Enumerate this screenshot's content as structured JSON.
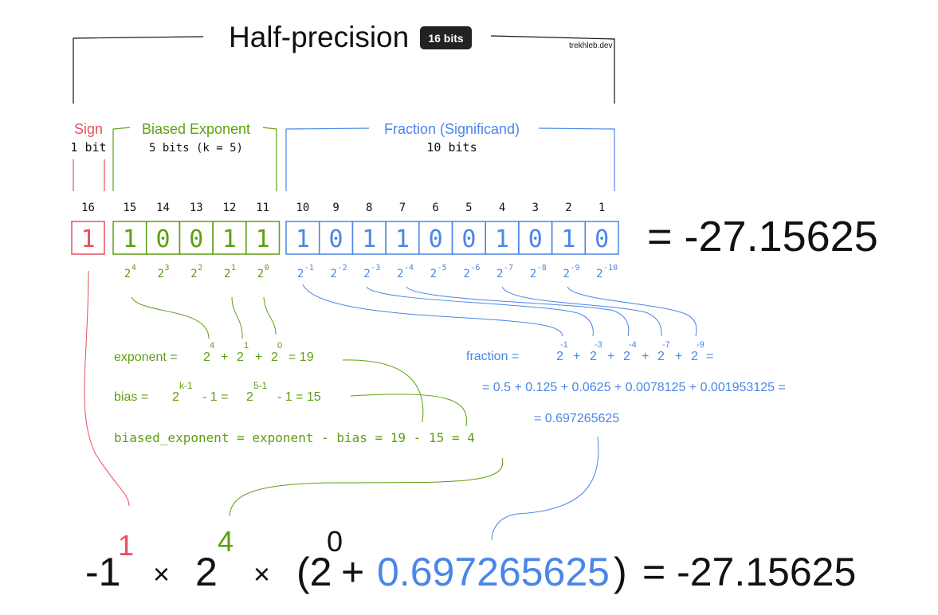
{
  "title": "Half-precision",
  "badge": "16 bits",
  "credit": "trekhleb.dev",
  "colors": {
    "sign": "#e8505b",
    "exponent": "#5e9f12",
    "fraction": "#4a86e8",
    "text": "#111111",
    "badge_bg": "#222222"
  },
  "sign": {
    "label": "Sign",
    "width_label": "1 bit"
  },
  "exponent": {
    "label": "Biased Exponent",
    "width_label": "5 bits (k = 5)"
  },
  "fraction": {
    "label": "Fraction (Significand)",
    "width_label": "10 bits"
  },
  "bit_positions": [
    "16",
    "15",
    "14",
    "13",
    "12",
    "11",
    "10",
    "9",
    "8",
    "7",
    "6",
    "5",
    "4",
    "3",
    "2",
    "1"
  ],
  "bits": [
    "1",
    "1",
    "0",
    "0",
    "1",
    "1",
    "1",
    "0",
    "1",
    "1",
    "0",
    "0",
    "1",
    "0",
    "1",
    "0"
  ],
  "result": "= -27.15625",
  "exp_powers": [
    "4",
    "3",
    "2",
    "1",
    "0"
  ],
  "frac_powers": [
    "-1",
    "-2",
    "-3",
    "-4",
    "-5",
    "-6",
    "-7",
    "-8",
    "-9",
    "-10"
  ],
  "base": "2",
  "exp_formula": {
    "prefix": "exponent = ",
    "terms": [
      "4",
      "1",
      "0"
    ],
    "suffix": "= 19"
  },
  "bias_formula": {
    "prefix": "bias = ",
    "pow1": "k-1",
    "mid": "- 1 = ",
    "pow2": "5-1",
    "suffix": "- 1 = 15"
  },
  "biased_formula": "biased_exponent = exponent - bias = 19 - 15 = 4",
  "frac_formula": {
    "prefix": "fraction = ",
    "terms": [
      "-1",
      "-3",
      "-4",
      "-7",
      "-9"
    ],
    "suffix": "=",
    "line2": "= 0.5 + 0.125 + 0.0625 + 0.0078125 + 0.001953125 =",
    "line3": "= 0.697265625"
  },
  "final": {
    "neg_one": "-1",
    "sign_pow": "1",
    "times": "×",
    "two": "2",
    "exp_pow": "4",
    "open": "(2",
    "zero_pow": "0",
    "plus": "+",
    "fraction_value": "0.697265625",
    "close": ")",
    "result": "= -27.15625"
  }
}
